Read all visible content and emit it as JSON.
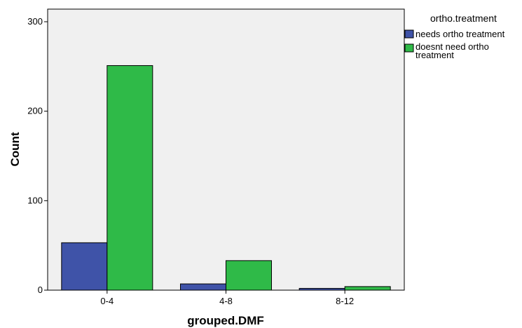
{
  "chart_data": {
    "type": "bar",
    "xlabel": "grouped.DMF",
    "ylabel": "Count",
    "categories": [
      "0-4",
      "4-8",
      "8-12"
    ],
    "series": [
      {
        "name": "needs ortho treatment",
        "values": [
          53,
          7,
          2
        ],
        "color": "#3f53a8"
      },
      {
        "name": "doesnt need ortho treatment",
        "values": [
          251,
          33,
          4
        ],
        "color": "#2fba48"
      }
    ],
    "ylim": [
      0,
      300
    ],
    "yticks": [
      "0",
      "100",
      "200",
      "300"
    ],
    "grid": false,
    "legend_title": "ortho.treatment",
    "legend_placement": "right",
    "plot_background": "#f0f0f0"
  }
}
